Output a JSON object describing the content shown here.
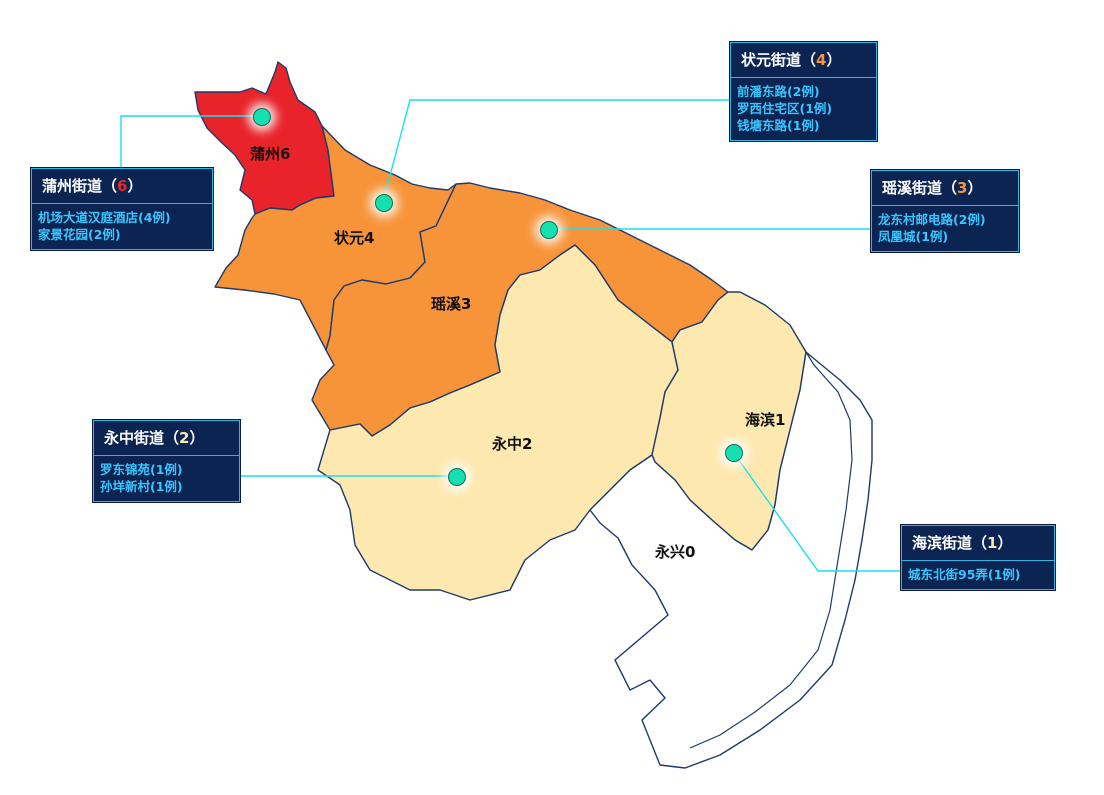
{
  "colors": {
    "level_6": "#e8232a",
    "level_4": "#f7943a",
    "level_3": "#f7943a",
    "level_2": "#fde8b0",
    "level_1": "#fde8b0",
    "level_0": "#ffffff",
    "connector": "#18e0ef",
    "card_bg": "#0c2452",
    "card_text": "#39c6ff"
  },
  "districts": [
    {
      "id": "puzhou",
      "label": "蒲州6",
      "count": 6
    },
    {
      "id": "zhuangyuan",
      "label": "状元4",
      "count": 4
    },
    {
      "id": "yaoxi",
      "label": "瑶溪3",
      "count": 3
    },
    {
      "id": "yongzhong",
      "label": "永中2",
      "count": 2
    },
    {
      "id": "haibin",
      "label": "海滨1",
      "count": 1
    },
    {
      "id": "yongxing",
      "label": "永兴0",
      "count": 0
    }
  ],
  "cards": [
    {
      "id": "zhuangyuan",
      "title": "状元街道",
      "count": "4",
      "count_color": "#f7943a",
      "lines": [
        "前潘东路(2例)",
        "罗西住宅区(1例)",
        "钱塘东路(1例)"
      ]
    },
    {
      "id": "puzhou",
      "title": "蒲州街道",
      "count": "6",
      "count_color": "#e8232a",
      "lines": [
        "机场大道汉庭酒店(4例)",
        "家景花园(2例)"
      ]
    },
    {
      "id": "yaoxi",
      "title": "瑶溪街道",
      "count": "3",
      "count_color": "#f7943a",
      "lines": [
        "龙东村邮电路(2例)",
        "凤凰城(1例)"
      ]
    },
    {
      "id": "yongzhong",
      "title": "永中街道",
      "count": "2",
      "count_color": "#fde8b0",
      "lines": [
        "罗东锦苑(1例)",
        "孙垟新村(1例)"
      ]
    },
    {
      "id": "haibin",
      "title": "海滨街道",
      "count": "1",
      "count_color": "#fde8b0",
      "lines": [
        "城东北街95弄(1例)"
      ]
    }
  ]
}
